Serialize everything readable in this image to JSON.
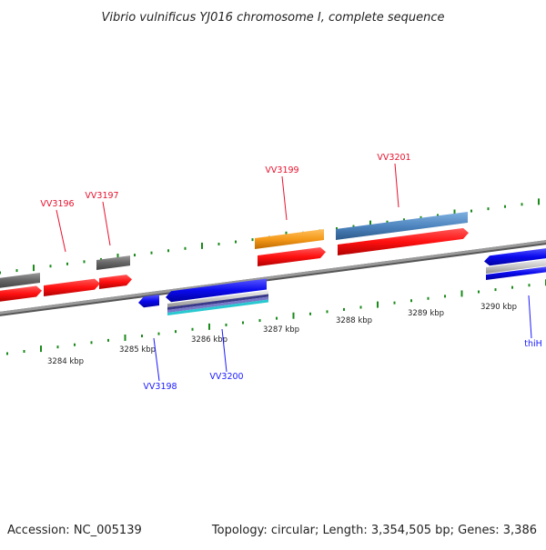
{
  "title": "Vibrio vulnificus YJ016 chromosome I, complete sequence",
  "footer": {
    "accession": "Accession: NC_005139",
    "summary": "Topology: circular; Length: 3,354,505 bp; Genes: 3,386"
  },
  "ticks": [
    "3284 kbp",
    "3285 kbp",
    "3286 kbp",
    "3287 kbp",
    "3288 kbp",
    "3289 kbp",
    "3290 kbp"
  ],
  "genes": [
    {
      "name": "VV3196",
      "strand": "forward",
      "color": "#e8112d"
    },
    {
      "name": "VV3197",
      "strand": "forward",
      "color": "#e8112d"
    },
    {
      "name": "VV3198",
      "strand": "reverse",
      "color": "#1a1aff"
    },
    {
      "name": "VV3199",
      "strand": "forward",
      "color": "#e8112d"
    },
    {
      "name": "VV3200",
      "strand": "reverse",
      "color": "#1a1aff"
    },
    {
      "name": "VV3201",
      "strand": "forward",
      "color": "#e8112d"
    },
    {
      "name": "thiH",
      "strand": "reverse",
      "color": "#1a1aff"
    }
  ],
  "colors": {
    "forward_cds": "#ff1a1a",
    "reverse_cds": "#1010ee",
    "rna_gray": "#6e6e6e",
    "orange_feature": "#f59a1a",
    "steelblue_feature": "#4f86c0",
    "backbone": "#8a8a8a",
    "tick": "#1a8a1a"
  }
}
